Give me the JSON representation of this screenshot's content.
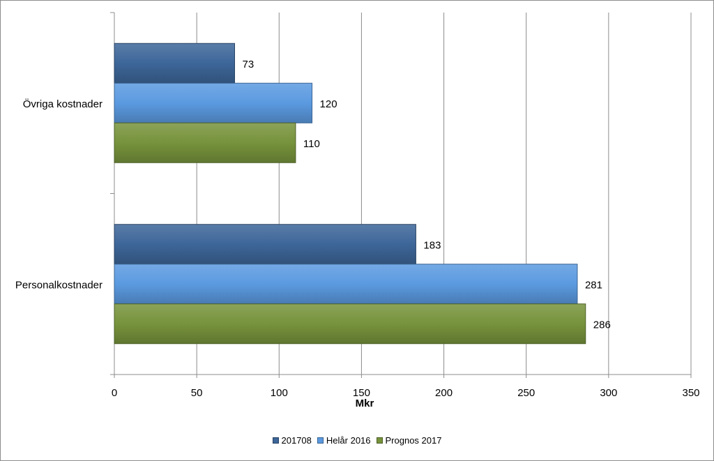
{
  "chart_data": {
    "type": "bar",
    "orientation": "horizontal",
    "categories": [
      "Övriga kostnader",
      "Personalkostnader"
    ],
    "series": [
      {
        "name": "201708",
        "values": [
          73,
          183
        ],
        "color": "#3d6699"
      },
      {
        "name": "Helår 2016",
        "values": [
          120,
          281
        ],
        "color": "#5b9ae0"
      },
      {
        "name": "Prognos 2017",
        "values": [
          110,
          286
        ],
        "color": "#77933c"
      }
    ],
    "xlabel": "Mkr",
    "xlim": [
      0,
      350
    ],
    "xticks": [
      0,
      50,
      100,
      150,
      200,
      250,
      300,
      350
    ],
    "grid": true,
    "legend_position": "bottom"
  }
}
